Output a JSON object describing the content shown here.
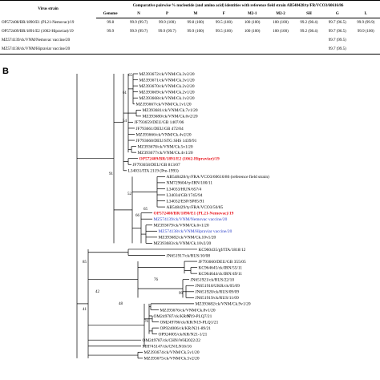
{
  "table": {
    "strain_header": "Virus strain",
    "title": "Comparative pairwise % nucleotide (and amino acid) identities with reference field strain AB548428/ty/FR/VCO3/60616/86",
    "columns": [
      "Genome",
      "N",
      "P",
      "M",
      "F",
      "M2-1",
      "M2-2",
      "SH",
      "G",
      "L"
    ],
    "rows": [
      {
        "strain": "OP572408/BR/1890/E1 (PL21-Nemovac)/19",
        "values": [
          "99.8",
          "99.9 (99.7)",
          "99.9 (100)",
          "99.8 (100)",
          "99.5 (100)",
          "100 (100)",
          "100 (100)",
          "99.2 (98.4)",
          "99.7 (96.5)",
          "99.9 (99.9)"
        ]
      },
      {
        "strain": "OP572409/BR/1891/E2 (1062-Hipraviar)/19",
        "values": [
          "99.9",
          "99.9 (99.7)",
          "99.9 (99.7)",
          "99.9 (100)",
          "99.5 (100)",
          "100 (100)",
          "100 (100)",
          "99.2 (98.4)",
          "99.7 (96.5)",
          "99.9 (100)"
        ]
      },
      {
        "strain": "MZ574139/ck/VNM/Nemovac vaccine/20",
        "values": [
          "",
          "",
          "",
          "",
          "",
          "",
          "",
          "",
          "99.7 (99.5)",
          ""
        ]
      },
      {
        "strain": "MZ574138/ck/VNM/Hipraviar vaccine/20",
        "values": [
          "",
          "",
          "",
          "",
          "",
          "",
          "",
          "",
          "99.7 (99.5)",
          ""
        ]
      }
    ]
  },
  "panel_label": "B",
  "colors": {
    "black": "#000000",
    "red": "#e8141c",
    "blue": "#2a3ec8"
  },
  "tree": {
    "leaves": [
      {
        "label": "MZ393672/ck/VNM/Ck.3v2/20",
        "color": "black",
        "bold": false
      },
      {
        "label": "MZ393671/ck/VNM/Ck.3v1/20",
        "color": "black",
        "bold": false
      },
      {
        "label": "MZ393670/ck/VNM/Ck.2v2/20",
        "color": "black",
        "bold": false
      },
      {
        "label": "MZ393669/ck/VNM/Ck.2v1/20",
        "color": "black",
        "bold": false
      },
      {
        "label": "MZ393668/ck/VNM/Ck.1v2/20",
        "color": "black",
        "bold": false
      },
      {
        "label": "MZ393667/ck/VNM/Ck.1v1/20",
        "color": "black",
        "bold": false
      },
      {
        "label": "MZ393681/ck/VNM/Ck.7v1/20",
        "color": "black",
        "bold": false
      },
      {
        "label": "MZ393680/ck/VNM/Ck.6v2/20",
        "color": "black",
        "bold": false
      },
      {
        "label": "JF793659/DEU/GB 1407/06",
        "color": "black",
        "bold": false
      },
      {
        "label": "JF793661/DEU/GB 472/04",
        "color": "black",
        "bold": false
      },
      {
        "label": "MZ393666/ck/VNM/Ck.4v2/20",
        "color": "black",
        "bold": false
      },
      {
        "label": "JF793660/DEU/STG SHS 1439/91",
        "color": "black",
        "bold": false
      },
      {
        "label": "MZ393678/ck/VNM/Ck.5v1/20",
        "color": "black",
        "bold": false
      },
      {
        "label": "MZ393677/ck/VNM/Ck.4v1/20",
        "color": "black",
        "bold": false
      },
      {
        "label": "OP572409/BR/1891/E2 (1062-Hipraviar)/19",
        "color": "red",
        "bold": true
      },
      {
        "label": "JF793658/DEU/GB 813/07",
        "color": "black",
        "bold": false
      },
      {
        "label": "L34031/ITA 2119 (Pre-1993)",
        "color": "black",
        "bold": false
      },
      {
        "label": "AB548428/ty/FRA/VCO3/60616/86 (reference field strain)",
        "color": "black",
        "bold": false
      },
      {
        "label": "NM729604/ty/IRN/100/11",
        "color": "black",
        "bold": false
      },
      {
        "label": "L34033/HUN/657/4",
        "color": "black",
        "bold": false
      },
      {
        "label": "L34034/GB/1745/94",
        "color": "black",
        "bold": false
      },
      {
        "label": "L34032/ESP/SP85/91",
        "color": "black",
        "bold": false
      },
      {
        "label": "AB548429/ty/FRA/VCO3/50/85",
        "color": "black",
        "bold": false
      },
      {
        "label": "OP572408/BR/1890/E1 (PL21-Nemovac)/19",
        "color": "red",
        "bold": true
      },
      {
        "label": "MZ574139/ck/VNM/Nemovac vaccine/20",
        "color": "blue",
        "bold": false
      },
      {
        "label": "MZ393679/ck/VNM/Ck.6v1/20",
        "color": "black",
        "bold": false
      },
      {
        "label": "MZ574138/ck/VNM/Hipraviar vaccine/20",
        "color": "blue",
        "bold": false
      },
      {
        "label": "MZ393682/ck/VNM/Ck.10v1/20",
        "color": "black",
        "bold": false
      },
      {
        "label": "MZ393683/ck/VNM/Ck.10v2/20",
        "color": "black",
        "bold": false
      },
      {
        "label": "KC960435/gf/ITA/1818/12",
        "color": "black",
        "bold": false
      },
      {
        "label": "JN651917/ck/RUS/10/08",
        "color": "black",
        "bold": false
      },
      {
        "label": "JF793660/DEU/GB 355/05",
        "color": "black",
        "bold": false
      },
      {
        "label": "KC964645/ck/IRN/55/11",
        "color": "black",
        "bold": false
      },
      {
        "label": "KC964644/ck/IRN/49/11",
        "color": "black",
        "bold": false
      },
      {
        "label": "JN651921/ck/RUS/22/10",
        "color": "black",
        "bold": false
      },
      {
        "label": "JN651918/UKR/ck/05/09",
        "color": "black",
        "bold": false
      },
      {
        "label": "JN651920/ck/RUS/09/09",
        "color": "black",
        "bold": false
      },
      {
        "label": "JN651919/ck/RUS/11/09",
        "color": "black",
        "bold": false
      },
      {
        "label": "MZ393682/ck/VNM/Ck.9v1/20",
        "color": "black",
        "bold": false
      },
      {
        "label": "MZ393676/ck/VNM/Ck.8v1/20",
        "color": "black",
        "bold": false
      },
      {
        "label": "OM249787/ck/KR/N19-PLQ7/21",
        "color": "black",
        "bold": false
      },
      {
        "label": "OM249786/ck/KR/N19-PLQ1/21",
        "color": "black",
        "bold": false
      },
      {
        "label": "OP924006/ck/KR/N21-89/21",
        "color": "black",
        "bold": false
      },
      {
        "label": "OP924005/ck/KR/N21-1/21",
        "color": "black",
        "bold": false
      },
      {
        "label": "OM249787/ck/CHN/WH2022/22",
        "color": "black",
        "bold": false
      },
      {
        "label": "MH745147/ck/CN/LN16/16",
        "color": "black",
        "bold": false
      },
      {
        "label": "MZ393674/ck/VNM/Ck.5v1/20",
        "color": "black",
        "bold": false
      },
      {
        "label": "MZ393675/ck/VNM/Ck.5v2/20",
        "color": "black",
        "bold": false
      }
    ],
    "bootstrap": [
      "65",
      "61",
      "54",
      "91",
      "65",
      "52",
      "66",
      "85",
      "48",
      "76",
      "42",
      "99",
      "41",
      "97",
      "76"
    ]
  }
}
